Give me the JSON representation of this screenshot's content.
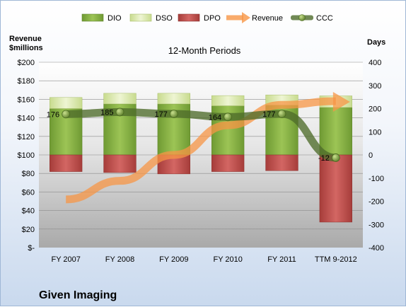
{
  "chart_data": {
    "type": "bar",
    "title": "12-Month Periods",
    "company": "Given Imaging",
    "left_axis_label_line1": "Revenue",
    "left_axis_label_line2": "$millions",
    "right_axis_label": "Days",
    "categories": [
      "FY 2007",
      "FY 2008",
      "FY 2009",
      "FY 2010",
      "FY 2011",
      "TTM 9-2012"
    ],
    "left_ylim": [
      0,
      200
    ],
    "left_ticks": [
      0,
      20,
      40,
      60,
      80,
      100,
      120,
      140,
      160,
      180,
      200
    ],
    "left_tick_labels": [
      "$-",
      "$20",
      "$40",
      "$60",
      "$80",
      "$100",
      "$120",
      "$140",
      "$160",
      "$180",
      "$200"
    ],
    "right_ylim": [
      -400,
      400
    ],
    "right_ticks": [
      -400,
      -300,
      -200,
      -100,
      0,
      100,
      200,
      300,
      400
    ],
    "right_tick_labels": [
      "-400",
      "-300",
      "-200",
      "-100",
      "0",
      "100",
      "200",
      "300",
      "400"
    ],
    "series": [
      {
        "name": "DIO",
        "axis": "right",
        "values": [
          200,
          220,
          220,
          212,
          215,
          205
        ],
        "color": "#7aa33a"
      },
      {
        "name": "DSO",
        "axis": "right",
        "values": [
          48,
          46,
          46,
          44,
          44,
          50
        ],
        "color": "#dceab0"
      },
      {
        "name": "DPO",
        "axis": "right",
        "values": [
          -72,
          -76,
          -82,
          -72,
          -68,
          -290
        ],
        "color": "#c0504d"
      },
      {
        "name": "Revenue",
        "axis": "left",
        "values": [
          52,
          72,
          100,
          132,
          154,
          158
        ],
        "color": "#f79646"
      },
      {
        "name": "CCC",
        "axis": "right",
        "values": [
          176,
          185,
          177,
          164,
          177,
          -12
        ],
        "color": "#4e6b2a"
      }
    ],
    "ccc_labels": [
      "176",
      "185",
      "177",
      "164",
      "177",
      "-12"
    ],
    "grid": true,
    "legend_position": "top"
  }
}
